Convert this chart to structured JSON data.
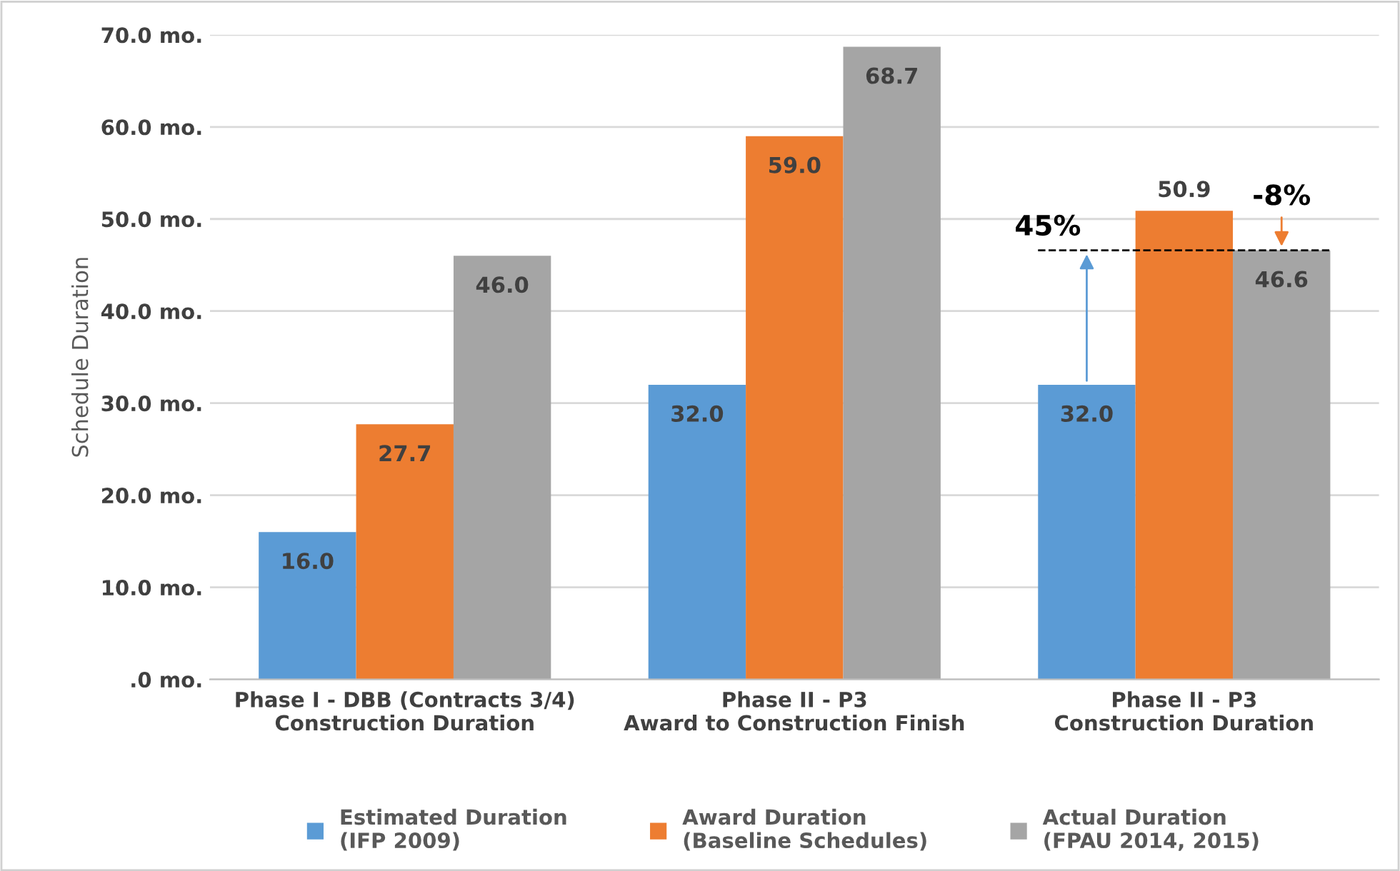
{
  "chart_data": {
    "type": "bar",
    "ylabel": "Schedule Duration",
    "categories": [
      "Phase I - DBB (Contracts 3/4)\nConstruction Duration",
      "Phase II - P3\nAward to Construction Finish",
      "Phase II - P3\nConstruction Duration"
    ],
    "series": [
      {
        "name": "Estimated Duration\n(IFP 2009)",
        "color": "#5b9bd5",
        "values": [
          16.0,
          32.0,
          32.0
        ],
        "value_labels": [
          "16.0",
          "32.0",
          "32.0"
        ]
      },
      {
        "name": "Award Duration\n(Baseline Schedules)",
        "color": "#ed7d31",
        "values": [
          27.7,
          59.0,
          50.9
        ],
        "value_labels": [
          "27.7",
          "59.0",
          "50.9"
        ]
      },
      {
        "name": "Actual Duration\n(FPAU 2014, 2015)",
        "color": "#a5a5a5",
        "values": [
          46.0,
          68.7,
          46.6
        ],
        "value_labels": [
          "46.0",
          "68.7",
          "46.6"
        ]
      }
    ],
    "ylim": [
      0,
      70
    ],
    "yticks": [
      {
        "value": 0,
        "label": ".0 mo."
      },
      {
        "value": 10,
        "label": "10.0 mo."
      },
      {
        "value": 20,
        "label": "20.0 mo."
      },
      {
        "value": 30,
        "label": "30.0 mo."
      },
      {
        "value": 40,
        "label": "40.0 mo."
      },
      {
        "value": 50,
        "label": "50.0 mo."
      },
      {
        "value": 60,
        "label": "60.0 mo."
      },
      {
        "value": 70,
        "label": "70.0 mo."
      }
    ],
    "grid": "y",
    "legend": "bottom",
    "ref_lines": [
      {
        "axis": "y",
        "value": 46.6,
        "color": "#000000",
        "line_style": "dashed"
      }
    ],
    "annotations": [
      "45%",
      "-8%"
    ]
  }
}
